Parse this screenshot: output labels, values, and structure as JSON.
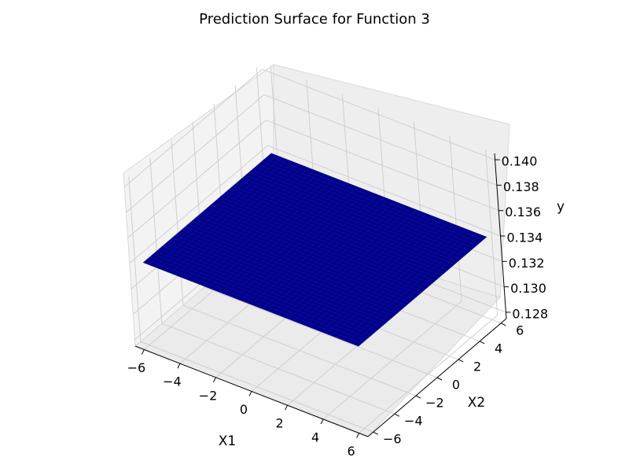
{
  "chart_data": {
    "type": "surface",
    "title": "Prediction Surface for Function 3",
    "xlabel": "X1",
    "ylabel": "X2",
    "zlabel": "y",
    "xlim": [
      -6.5,
      6.5
    ],
    "ylim": [
      -6.5,
      6.5
    ],
    "zlim": [
      0.1275,
      0.1405
    ],
    "x_ticks": [
      "−6",
      "−4",
      "−2",
      "0",
      "2",
      "4",
      "6"
    ],
    "y_ticks": [
      "−6",
      "−4",
      "−2",
      "0",
      "2",
      "4",
      "6"
    ],
    "z_ticks": [
      "0.128",
      "0.130",
      "0.132",
      "0.134",
      "0.136",
      "0.138",
      "0.140"
    ],
    "surface": {
      "x_range": [
        -6,
        6
      ],
      "y_range": [
        -6,
        6
      ],
      "z_value": 0.134,
      "color": "#00008b"
    },
    "grid": true,
    "pane_color": "#f2f2f2",
    "grid_color": "#cfcfcf"
  }
}
